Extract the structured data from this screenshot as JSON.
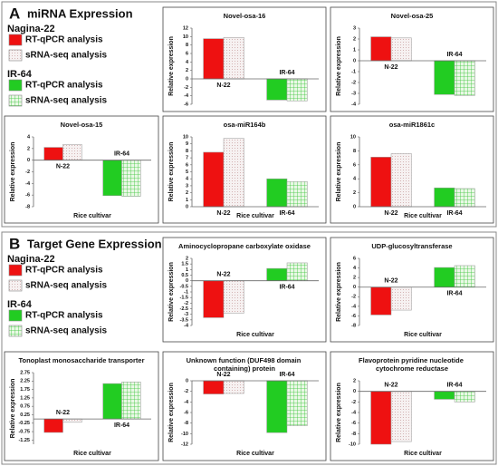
{
  "panels": [
    {
      "label": "A",
      "title": "miRNA Expression",
      "legend": [
        {
          "group": "Nagina-22",
          "items": [
            "RT-qPCR analysis",
            "sRNA-seq analysis"
          ]
        },
        {
          "group": "IR-64",
          "items": [
            "RT-qPCR analysis",
            "sRNA-seq analysis"
          ]
        }
      ]
    },
    {
      "label": "B",
      "title": "Target Gene Expression",
      "legend": [
        {
          "group": "Nagina-22",
          "items": [
            "RT-qPCR analysis",
            "sRNA-seq analysis"
          ]
        },
        {
          "group": "IR-64",
          "items": [
            "RT-qPCR analysis",
            "sRNA-seq analysis"
          ]
        }
      ]
    }
  ],
  "category_colors": [
    [
      "#ee1111",
      "#f6f1f1"
    ],
    [
      "#22cc22",
      "#cdeec6"
    ]
  ],
  "chart_data": [
    {
      "type": "bar",
      "title": "Novel-osa-16",
      "ylabel": "Relative expression",
      "categories": [
        "N-22",
        "IR-64"
      ],
      "series": [
        {
          "values": [
            9.5,
            -5
          ]
        },
        {
          "values": [
            9.8,
            -5.2
          ]
        }
      ],
      "ylim": [
        -6,
        12
      ],
      "yticks": [
        -6,
        -4,
        -2,
        0,
        2,
        4,
        6,
        8,
        10,
        12
      ]
    },
    {
      "type": "bar",
      "title": "Novel-osa-25",
      "ylabel": "Relative expression",
      "categories": [
        "N-22",
        "IR-64"
      ],
      "series": [
        {
          "values": [
            2.2,
            -3.1
          ]
        },
        {
          "values": [
            2.1,
            -3.2
          ]
        }
      ],
      "ylim": [
        -4,
        3
      ],
      "yticks": [
        -4,
        -3,
        -2,
        -1,
        0,
        1,
        2,
        3
      ]
    },
    {
      "type": "bar",
      "title": "Novel-osa-15",
      "ylabel": "Relative expression",
      "xlabel": "Rice cultivar",
      "categories": [
        "N-22",
        "IR-64"
      ],
      "series": [
        {
          "values": [
            2.2,
            -6.1
          ]
        },
        {
          "values": [
            2.7,
            -6.2
          ]
        }
      ],
      "ylim": [
        -8,
        4
      ],
      "yticks": [
        -8,
        -6,
        -4,
        -2,
        0,
        2,
        4
      ]
    },
    {
      "type": "bar",
      "title": "osa-miR164b",
      "ylabel": "Relative expression",
      "xlabel": "Rice cultivar",
      "categories": [
        "N-22",
        "IR-64"
      ],
      "series": [
        {
          "values": [
            7.8,
            4.0
          ]
        },
        {
          "values": [
            9.8,
            3.6
          ]
        }
      ],
      "ylim": [
        0,
        10
      ],
      "yticks": [
        0,
        1,
        2,
        3,
        4,
        5,
        6,
        7,
        8,
        9,
        10
      ]
    },
    {
      "type": "bar",
      "title": "osa-miR1861c",
      "ylabel": "Relative expression",
      "xlabel": "Rice cultivar",
      "categories": [
        "N-22",
        "IR-64"
      ],
      "series": [
        {
          "values": [
            7.1,
            2.7
          ]
        },
        {
          "values": [
            7.6,
            2.6
          ]
        }
      ],
      "ylim": [
        0,
        10
      ],
      "yticks": [
        0,
        2,
        4,
        6,
        8,
        10
      ]
    },
    {
      "type": "bar",
      "title": "Aminocyclopropane carboxylate oxidase",
      "ylabel": "Relative expression",
      "xlabel": "Rice cultivar",
      "categories": [
        "N-22",
        "IR-64"
      ],
      "series": [
        {
          "values": [
            -3.3,
            1.1
          ]
        },
        {
          "values": [
            -2.9,
            1.6
          ]
        }
      ],
      "ylim": [
        -4,
        2
      ],
      "yticks": [
        -4,
        -3.5,
        -3,
        -2.5,
        -2,
        -1.5,
        -1,
        -0.5,
        0,
        0.5,
        1,
        1.5,
        2
      ]
    },
    {
      "type": "bar",
      "title": "UDP-glucosyltransferase",
      "ylabel": "Relative expression",
      "xlabel": "Rice cultivar",
      "categories": [
        "N-22",
        "IR-64"
      ],
      "series": [
        {
          "values": [
            -5.8,
            4.1
          ]
        },
        {
          "values": [
            -4.8,
            4.5
          ]
        }
      ],
      "ylim": [
        -8,
        6
      ],
      "yticks": [
        -8,
        -6,
        -4,
        -2,
        0,
        2,
        4,
        6
      ]
    },
    {
      "type": "bar",
      "title": "Tonoplast monosaccharide transporter",
      "ylabel": "Relative expression",
      "xlabel": "Rice cultivar",
      "categories": [
        "N-22",
        "IR-64"
      ],
      "series": [
        {
          "values": [
            -0.8,
            2.1
          ]
        },
        {
          "values": [
            -0.2,
            2.2
          ]
        }
      ],
      "ylim": [
        -1.5,
        2.75
      ],
      "yticks": [
        -1.25,
        -0.75,
        -0.25,
        0.25,
        0.75,
        1.25,
        1.75,
        2.25,
        2.75
      ]
    },
    {
      "type": "bar",
      "title": "Unknown function (DUF498 domain containing) protein",
      "ylabel": "Relative expression",
      "xlabel": "Rice cultivar",
      "categories": [
        "N-22",
        "IR-64"
      ],
      "series": [
        {
          "values": [
            -2.5,
            -9.8
          ]
        },
        {
          "values": [
            -2.4,
            -8.5
          ]
        }
      ],
      "ylim": [
        -12,
        0
      ],
      "yticks": [
        -12,
        -10,
        -8,
        -6,
        -4,
        -2,
        0
      ]
    },
    {
      "type": "bar",
      "title": "Flavoprotein pyridine nucleotide cytochrome reductase",
      "ylabel": "Relative expression",
      "xlabel": "Rice cultivar",
      "categories": [
        "N-22",
        "IR-64"
      ],
      "series": [
        {
          "values": [
            -10,
            -1.5
          ]
        },
        {
          "values": [
            -9.5,
            -2
          ]
        }
      ],
      "ylim": [
        -10,
        2
      ],
      "yticks": [
        -10,
        -8,
        -6,
        -4,
        -2,
        0,
        2
      ]
    }
  ]
}
